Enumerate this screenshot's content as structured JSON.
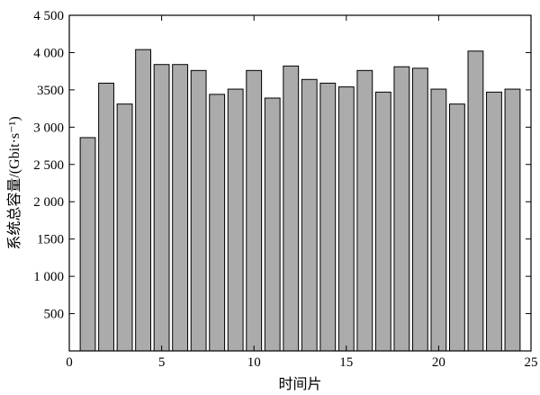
{
  "chart_data": {
    "type": "bar",
    "xlabel": "时间片",
    "ylabel": "系统总容量/(Gbit·s⁻¹)",
    "xlim": [
      0,
      25
    ],
    "ylim": [
      0,
      4500
    ],
    "x_ticks": [
      0,
      5,
      10,
      15,
      20,
      25
    ],
    "x_tick_labels": [
      "0",
      "5",
      "10",
      "15",
      "20",
      "25"
    ],
    "y_ticks": [
      500,
      1000,
      1500,
      2000,
      2500,
      3000,
      3500,
      4000,
      4500
    ],
    "y_tick_labels": [
      "500",
      "1 000",
      "1500",
      "2 000",
      "2 500",
      "3 000",
      "3500",
      "4 000",
      "4 500"
    ],
    "grid": false,
    "colors": {
      "bar_fill": "#ababab",
      "bar_stroke": "#000000"
    },
    "x": [
      1,
      2,
      3,
      4,
      5,
      6,
      7,
      8,
      9,
      10,
      11,
      12,
      13,
      14,
      15,
      16,
      17,
      18,
      19,
      20,
      21,
      22,
      23,
      24
    ],
    "values": [
      2860,
      3590,
      3310,
      4040,
      3840,
      3840,
      3760,
      3440,
      3510,
      3760,
      3390,
      3820,
      3640,
      3590,
      3540,
      3760,
      3470,
      3810,
      3790,
      3510,
      3310,
      4020,
      3470,
      3510
    ]
  }
}
